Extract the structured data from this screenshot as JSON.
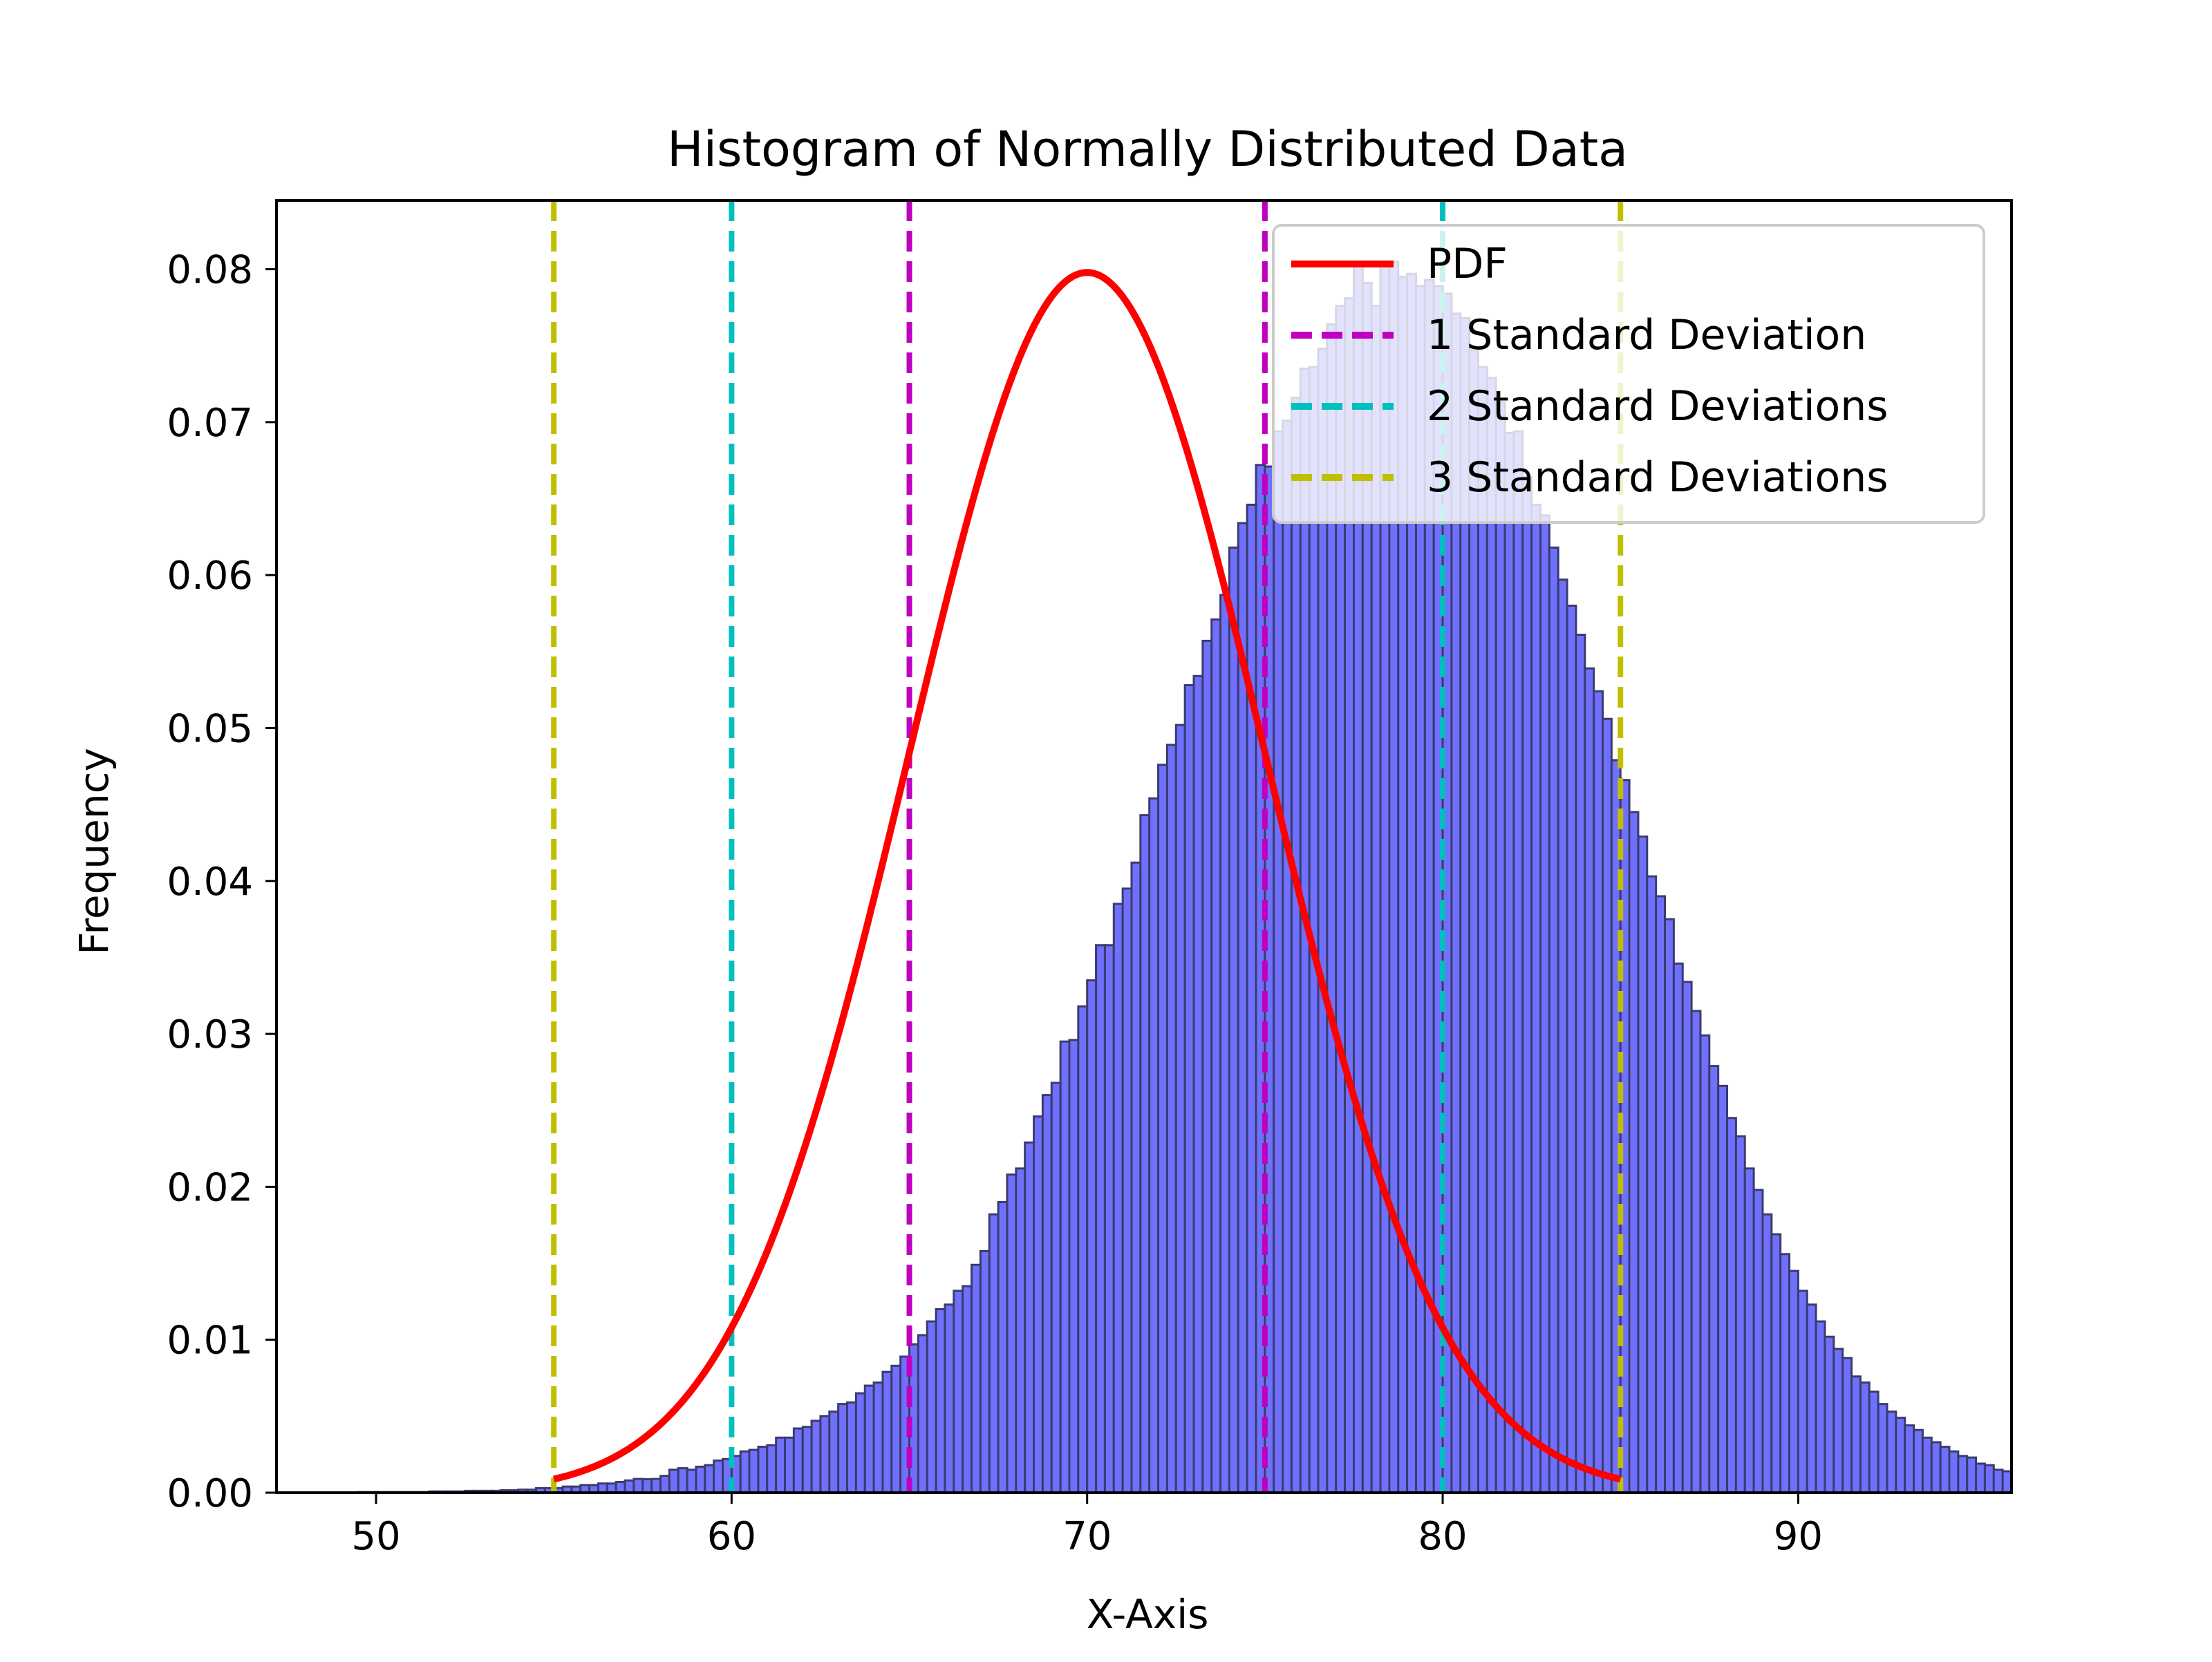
{
  "chart_data": {
    "type": "bar",
    "title": "Histogram of Normally Distributed Data",
    "xlabel": "X-Axis",
    "ylabel": "Frequency",
    "xlim": [
      47.2,
      96.0
    ],
    "ylim": [
      0,
      0.0845
    ],
    "xticks": [
      50,
      60,
      70,
      80,
      90
    ],
    "xtick_labels": [
      "50",
      "60",
      "70",
      "80",
      "90"
    ],
    "yticks": [
      0,
      0.01,
      0.02,
      0.03,
      0.04,
      0.05,
      0.06,
      0.07,
      0.08
    ],
    "ytick_labels": [
      "0.00",
      "0.01",
      "0.02",
      "0.03",
      "0.04",
      "0.05",
      "0.06",
      "0.07",
      "0.08"
    ],
    "grid": false,
    "legend_position": "upper-right",
    "histogram": {
      "x_start": 49.5,
      "bin_width": 0.25,
      "color": "#7070ff",
      "edge_color": "#3b3b6e",
      "values": [
        4e-05,
        4e-05,
        4e-05,
        4e-05,
        4e-05,
        4e-05,
        4e-05,
        4e-05,
        8e-05,
        8e-05,
        8e-05,
        8e-05,
        0.00012,
        0.00012,
        0.00012,
        0.00012,
        0.00016,
        0.00016,
        0.0002,
        0.0002,
        0.0003,
        0.0003,
        0.0003,
        0.0004,
        0.0004,
        0.0005,
        0.0005,
        0.0006,
        0.0006,
        0.0007,
        0.0008,
        0.0009,
        0.00088,
        0.0009,
        0.0011,
        0.0015,
        0.0016,
        0.0015,
        0.0017,
        0.0018,
        0.0021,
        0.0022,
        0.0024,
        0.0027,
        0.0028,
        0.003,
        0.0031,
        0.0036,
        0.0036,
        0.0042,
        0.0043,
        0.0047,
        0.005,
        0.0053,
        0.0058,
        0.0059,
        0.0065,
        0.007,
        0.0072,
        0.0079,
        0.0083,
        0.0089,
        0.0097,
        0.0103,
        0.0112,
        0.012,
        0.0123,
        0.0132,
        0.0135,
        0.0149,
        0.0158,
        0.0182,
        0.019,
        0.0208,
        0.0212,
        0.0229,
        0.0246,
        0.026,
        0.0268,
        0.0295,
        0.0296,
        0.0318,
        0.0335,
        0.0358,
        0.0358,
        0.0385,
        0.0395,
        0.0412,
        0.0443,
        0.0454,
        0.0476,
        0.0489,
        0.0502,
        0.0528,
        0.0534,
        0.0557,
        0.0571,
        0.0587,
        0.0618,
        0.0634,
        0.0646,
        0.0672,
        0.0671,
        0.0694,
        0.0701,
        0.0716,
        0.0735,
        0.0736,
        0.0748,
        0.0764,
        0.0776,
        0.0781,
        0.0802,
        0.0791,
        0.0776,
        0.0803,
        0.0805,
        0.0795,
        0.0797,
        0.0789,
        0.0793,
        0.0789,
        0.0784,
        0.0771,
        0.0768,
        0.0747,
        0.0736,
        0.0729,
        0.0713,
        0.0693,
        0.0694,
        0.0664,
        0.0646,
        0.0639,
        0.0618,
        0.0597,
        0.058,
        0.0561,
        0.0539,
        0.0524,
        0.0506,
        0.0479,
        0.0466,
        0.0445,
        0.0429,
        0.0403,
        0.039,
        0.0375,
        0.0346,
        0.0334,
        0.0315,
        0.0299,
        0.0279,
        0.0266,
        0.0245,
        0.0233,
        0.0212,
        0.0198,
        0.0182,
        0.0169,
        0.0156,
        0.0145,
        0.0132,
        0.0123,
        0.0112,
        0.0102,
        0.0094,
        0.0088,
        0.0076,
        0.0072,
        0.0066,
        0.0058,
        0.0053,
        0.0049,
        0.0044,
        0.0041,
        0.0036,
        0.0033,
        0.003,
        0.0027,
        0.0024,
        0.0023,
        0.0019,
        0.0018,
        0.0015,
        0.0014,
        0.0013,
        0.0011,
        0.0009,
        0.00085,
        0.0007,
        0.0006,
        0.0006,
        0.0005,
        0.0004,
        0.0004,
        0.0003,
        0.0003,
        0.0003,
        0.0002,
        0.0002,
        0.00016,
        0.00016,
        0.00012,
        0.00012,
        0.0001,
        8e-05,
        8e-05,
        6e-05,
        6e-05,
        6e-05,
        4e-05,
        4e-05,
        4e-05,
        4e-05,
        4e-05,
        4e-05,
        2e-05,
        2e-05,
        2e-05,
        2e-05,
        2e-05,
        2e-05,
        2e-05,
        2e-05,
        2e-05,
        2e-05,
        2e-05,
        2e-05,
        2e-05,
        2e-05,
        2e-05,
        2e-05,
        2e-05,
        2e-05,
        2e-05,
        2e-05,
        2e-05
      ]
    },
    "pdf": {
      "name": "PDF",
      "mean": 70,
      "std": 5,
      "x_range": [
        55,
        85
      ],
      "color": "#ff0000"
    },
    "vlines": [
      {
        "name": "1 Standard Deviation",
        "x": [
          65,
          75
        ],
        "color": "#bf00bf"
      },
      {
        "name": "2 Standard Deviations",
        "x": [
          60,
          80
        ],
        "color": "#00bfbf"
      },
      {
        "name": "3 Standard Deviations",
        "x": [
          55,
          85
        ],
        "color": "#bfbf00"
      }
    ],
    "legend": [
      "PDF",
      "1 Standard Deviation",
      "2 Standard Deviations",
      "3 Standard Deviations"
    ]
  }
}
